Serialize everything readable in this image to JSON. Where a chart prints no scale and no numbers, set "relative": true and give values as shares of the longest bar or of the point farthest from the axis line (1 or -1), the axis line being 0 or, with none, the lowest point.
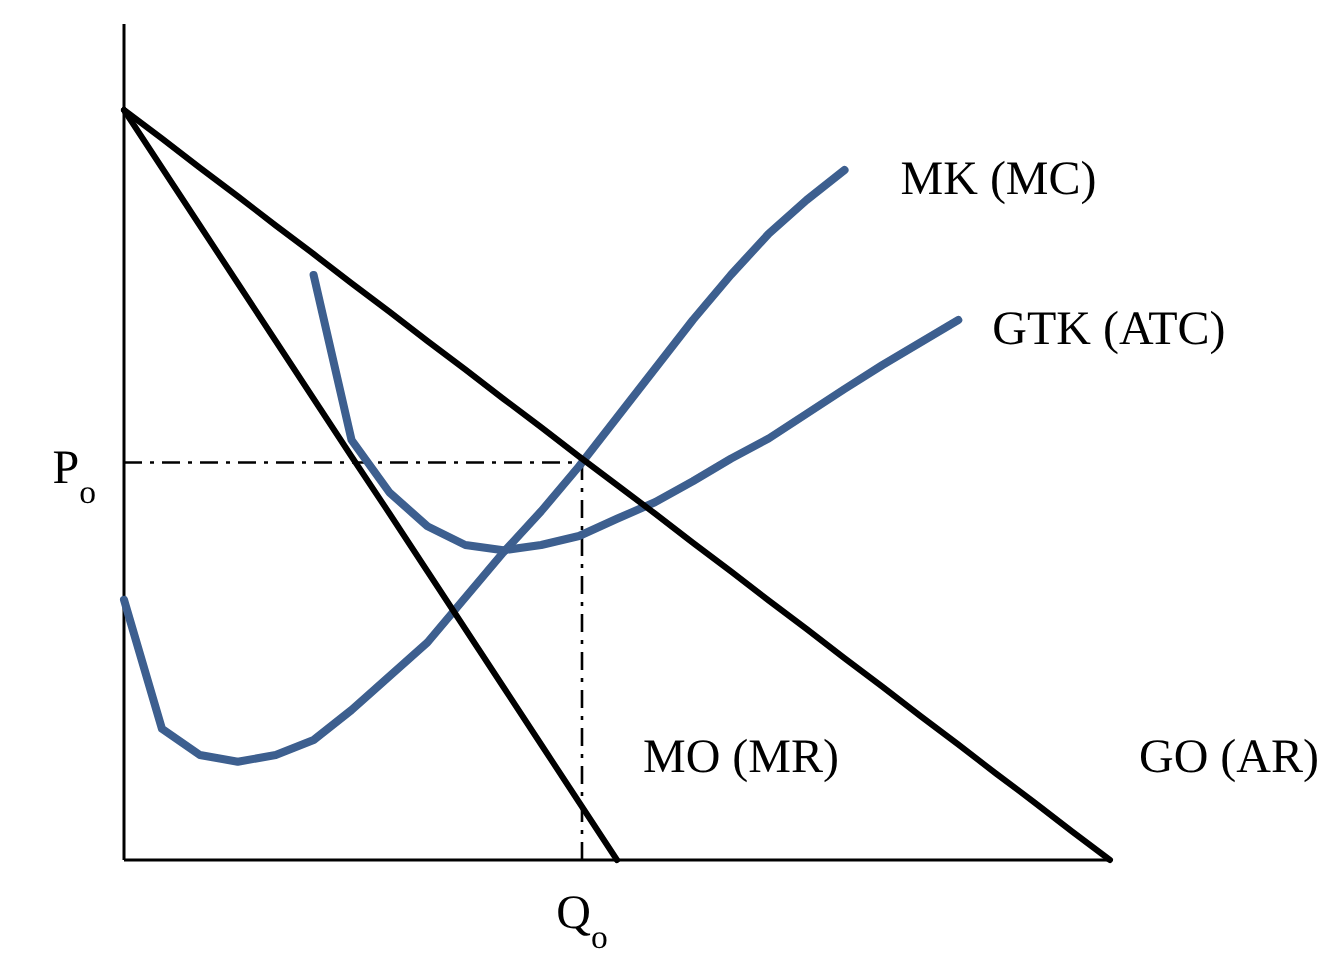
{
  "chart_data": {
    "type": "line",
    "relative": true,
    "categories": [
      null,
      null,
      null,
      null,
      null,
      null,
      null,
      null,
      null,
      null,
      null,
      null,
      null,
      null,
      null,
      null,
      null,
      null,
      null,
      null,
      null,
      null,
      null,
      null,
      null,
      null,
      null
    ],
    "series": [
      {
        "name": "MK (MC)",
        "color": "#3d5f8f",
        "values": [
          0.347,
          0.175,
          0.14,
          0.131,
          0.14,
          0.16,
          0.2,
          0.245,
          0.29,
          0.35,
          0.41,
          0.465,
          0.525,
          0.59,
          0.655,
          0.72,
          0.78,
          0.835,
          0.88,
          0.92,
          null,
          null,
          null,
          null,
          null,
          null,
          null
        ]
      },
      {
        "name": "GTK (ATC)",
        "color": "#3d5f8f",
        "values": [
          null,
          null,
          null,
          null,
          null,
          0.78,
          0.56,
          0.49,
          0.445,
          0.42,
          0.413,
          0.42,
          0.432,
          0.455,
          0.477,
          0.505,
          0.535,
          0.562,
          0.595,
          0.628,
          0.66,
          0.69,
          0.72,
          null,
          null,
          null,
          null
        ]
      },
      {
        "name": "MO (MR)",
        "color": "#000000",
        "values": [
          1,
          0.923,
          0.846,
          0.769,
          0.692,
          0.615,
          0.538,
          0.462,
          0.385,
          0.308,
          0.231,
          0.154,
          0.077,
          0,
          null,
          null,
          null,
          null,
          null,
          null,
          null,
          null,
          null,
          null,
          null,
          null,
          null
        ]
      },
      {
        "name": "GO (AR)",
        "color": "#000000",
        "values": [
          1,
          0.962,
          0.923,
          0.885,
          0.846,
          0.808,
          0.769,
          0.731,
          0.692,
          0.654,
          0.615,
          0.577,
          0.538,
          0.5,
          0.462,
          0.423,
          0.385,
          0.346,
          0.308,
          0.269,
          0.231,
          0.192,
          0.154,
          0.115,
          0.077,
          0.038,
          0
        ]
      }
    ],
    "ref_lines": [
      {
        "axis": "y",
        "value": 0.53,
        "label": "P$_{o}$",
        "line_style": "dashed",
        "color": "#000000"
      }
    ],
    "annotations": [
      "Q$_{o}$"
    ]
  }
}
